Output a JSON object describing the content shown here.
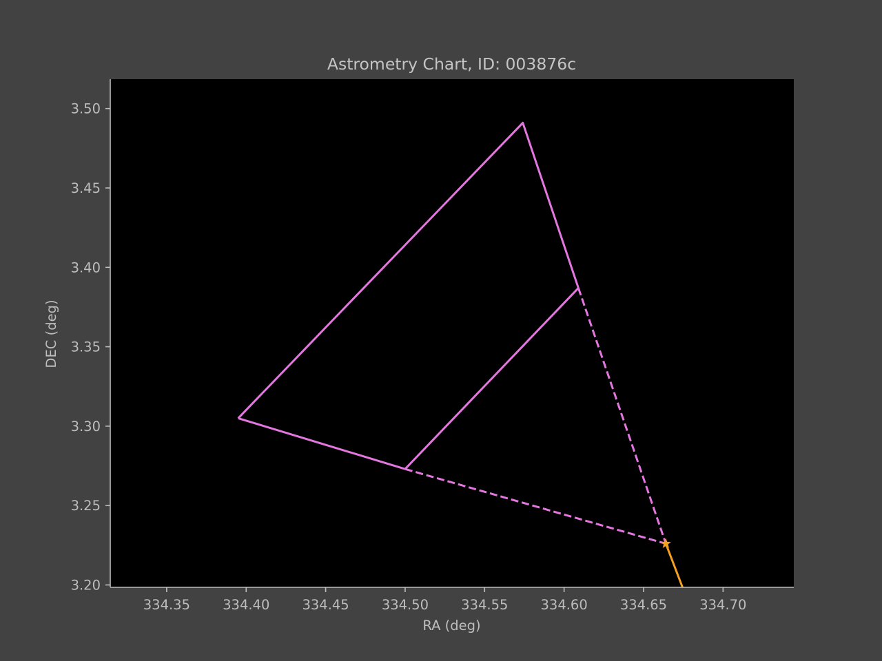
{
  "chart_data": {
    "type": "line",
    "title": "Astrometry Chart, ID: 003876c",
    "xlabel": "RA (deg)",
    "ylabel": "DEC (deg)",
    "xlim": [
      334.3145,
      334.7445
    ],
    "ylim": [
      3.1985,
      3.5185
    ],
    "xticks": [
      334.35,
      334.4,
      334.45,
      334.5,
      334.55,
      334.6,
      334.65,
      334.7
    ],
    "xtick_labels": [
      "334.35",
      "334.40",
      "334.45",
      "334.50",
      "334.55",
      "334.60",
      "334.65",
      "334.70"
    ],
    "yticks": [
      3.2,
      3.25,
      3.3,
      3.35,
      3.4,
      3.45,
      3.5
    ],
    "ytick_labels": [
      "3.20",
      "3.25",
      "3.30",
      "3.35",
      "3.40",
      "3.45",
      "3.50"
    ],
    "grid": false,
    "colors": {
      "figure_bg": "#424242",
      "plot_bg": "#000000",
      "axis": "#bdbdbd",
      "triangle": "#e377df",
      "track": "#f5a020",
      "marker": "#f5a020"
    },
    "series": [
      {
        "style": "solid",
        "color": "#e377df",
        "x": [
          334.395,
          334.574,
          334.609
        ],
        "y": [
          3.305,
          3.491,
          3.387
        ]
      },
      {
        "style": "solid",
        "color": "#e377df",
        "x": [
          334.395,
          334.5
        ],
        "y": [
          3.305,
          3.273
        ]
      },
      {
        "style": "solid",
        "color": "#e377df",
        "x": [
          334.5,
          334.609
        ],
        "y": [
          3.273,
          3.387
        ]
      },
      {
        "style": "dashed",
        "color": "#e377df",
        "x": [
          334.5,
          334.664
        ],
        "y": [
          3.273,
          3.226
        ]
      },
      {
        "style": "dashed",
        "color": "#e377df",
        "x": [
          334.609,
          334.664
        ],
        "y": [
          3.387,
          3.226
        ]
      },
      {
        "style": "solid",
        "color": "#f5a020",
        "x": [
          334.664,
          334.6745
        ],
        "y": [
          3.226,
          3.1985
        ]
      }
    ],
    "markers": [
      {
        "x": 334.664,
        "y": 3.226,
        "shape": "star",
        "color": "#f5a020"
      }
    ]
  }
}
